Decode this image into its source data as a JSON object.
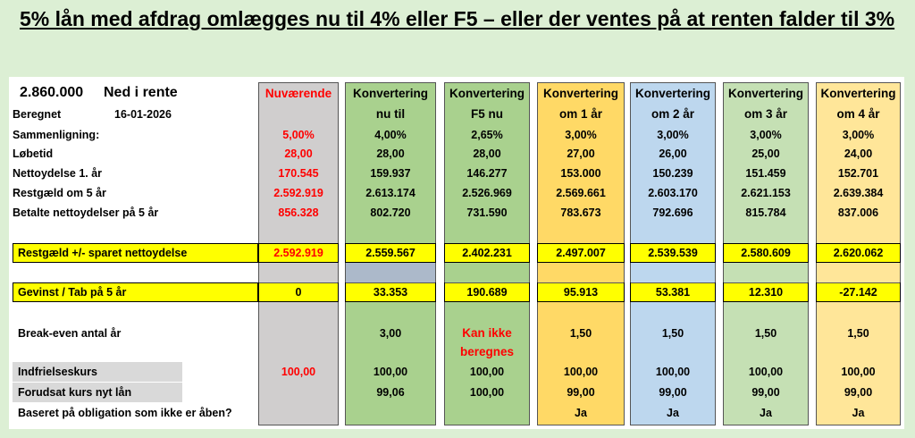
{
  "title": "5% lån med afdrag omlægges nu til 4% eller F5 – eller der ventes på at renten falder til 3%",
  "labels": {
    "amount": "2.860.000",
    "amount_text": "Ned i rente",
    "beregnet": "Beregnet",
    "date": "16-01-2026",
    "sammenligning": "Sammenligning:",
    "loebetid": "Løbetid",
    "nettoydelse": "Nettoydelse 1. år",
    "restgaeld": "Restgæld om 5 år",
    "betalte": "Betalte nettoydelser på 5 år",
    "restgaeld_sparet": "Restgæld +/- sparet nettoydelse",
    "gevinst": "Gevinst / Tab på 5 år",
    "breakeven": "Break-even antal år",
    "indfrielseskurs": "Indfrielseskurs",
    "forudsat": "Forudsat kurs nyt lån",
    "baseret": "Baseret på obligation som ikke er åben?"
  },
  "columns": [
    {
      "h1": "Nuværende",
      "h2": "",
      "rente": "5,00%",
      "loebetid": "28,00",
      "nettoydelse": "170.545",
      "restgaeld": "2.592.919",
      "betalte": "856.328",
      "restgaeld_sparet": "2.592.919",
      "gevinst": "0",
      "breakeven1": "",
      "breakeven2": "",
      "indfrielse": "100,00",
      "kurs": "",
      "baseret": "",
      "color": "#d0cece",
      "red": true
    },
    {
      "h1": "Konvertering",
      "h2": "nu til",
      "rente": "4,00%",
      "loebetid": "28,00",
      "nettoydelse": "159.937",
      "restgaeld": "2.613.174",
      "betalte": "802.720",
      "restgaeld_sparet": "2.559.567",
      "gevinst": "33.353",
      "breakeven1": "3,00",
      "breakeven2": "",
      "indfrielse": "100,00",
      "kurs": "99,06",
      "baseret": "",
      "color": "#a9d18e",
      "red": false
    },
    {
      "h1": "Konvertering",
      "h2": "F5 nu",
      "rente": "2,65%",
      "loebetid": "28,00",
      "nettoydelse": "146.277",
      "restgaeld": "2.526.969",
      "betalte": "731.590",
      "restgaeld_sparet": "2.402.231",
      "gevinst": "190.689",
      "breakeven1": "Kan ikke",
      "breakeven2": "beregnes",
      "indfrielse": "100,00",
      "kurs": "100,00",
      "baseret": "",
      "color": "#a9d18e",
      "red": false,
      "breakeven_red": true
    },
    {
      "h1": "Konvertering",
      "h2": "om 1 år",
      "rente": "3,00%",
      "loebetid": "27,00",
      "nettoydelse": "153.000",
      "restgaeld": "2.569.661",
      "betalte": "783.673",
      "restgaeld_sparet": "2.497.007",
      "gevinst": "95.913",
      "breakeven1": "1,50",
      "breakeven2": "",
      "indfrielse": "100,00",
      "kurs": "99,00",
      "baseret": "Ja",
      "color": "#ffd966",
      "red": false
    },
    {
      "h1": "Konvertering",
      "h2": "om 2 år",
      "rente": "3,00%",
      "loebetid": "26,00",
      "nettoydelse": "150.239",
      "restgaeld": "2.603.170",
      "betalte": "792.696",
      "restgaeld_sparet": "2.539.539",
      "gevinst": "53.381",
      "breakeven1": "1,50",
      "breakeven2": "",
      "indfrielse": "100,00",
      "kurs": "99,00",
      "baseret": "Ja",
      "color": "#bdd7ee",
      "red": false
    },
    {
      "h1": "Konvertering",
      "h2": "om 3 år",
      "rente": "3,00%",
      "loebetid": "25,00",
      "nettoydelse": "151.459",
      "restgaeld": "2.621.153",
      "betalte": "815.784",
      "restgaeld_sparet": "2.580.609",
      "gevinst": "12.310",
      "breakeven1": "1,50",
      "breakeven2": "",
      "indfrielse": "100,00",
      "kurs": "99,00",
      "baseret": "Ja",
      "color": "#c5e0b4",
      "red": false
    },
    {
      "h1": "Konvertering",
      "h2": "om 4 år",
      "rente": "3,00%",
      "loebetid": "24,00",
      "nettoydelse": "152.701",
      "restgaeld": "2.639.384",
      "betalte": "837.006",
      "restgaeld_sparet": "2.620.062",
      "gevinst": "-27.142",
      "breakeven1": "1,50",
      "breakeven2": "",
      "indfrielse": "100,00",
      "kurs": "99,00",
      "baseret": "Ja",
      "color": "#ffe699",
      "red": false
    }
  ]
}
